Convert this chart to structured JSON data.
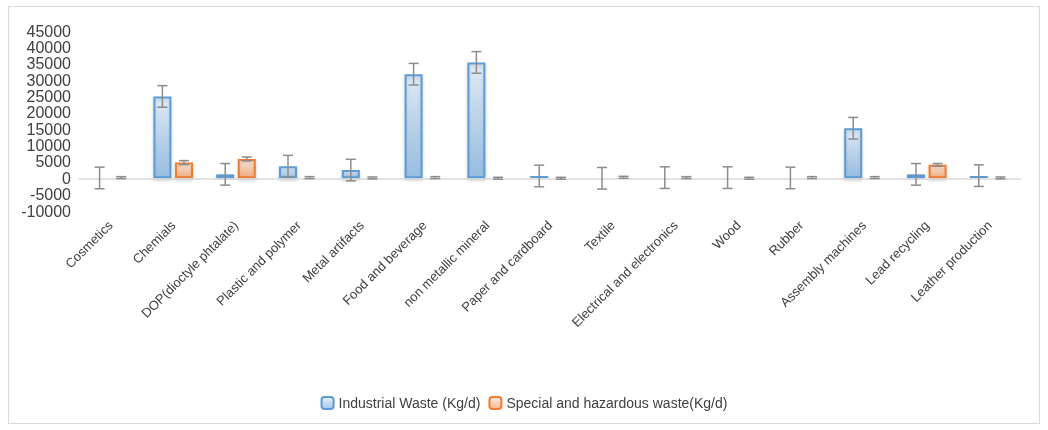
{
  "chart_data": {
    "type": "bar",
    "categories": [
      "Cosmetics",
      "Chemials",
      "DOP(dioctyle phtalate)",
      "Plastic and polymer",
      "Metal artifacts",
      "Food and beverage",
      "non metallic mineral",
      "Paper and cardboard",
      "Textile",
      "Electrical and electronics",
      "Wood",
      "Rubber",
      "Assembly machines",
      "Lead recycling",
      "Leather production"
    ],
    "series": [
      {
        "name": "Industrial Waste (Kg/d)",
        "color": "#5b9bd5",
        "values": [
          100,
          25000,
          1200,
          3700,
          2500,
          31800,
          35400,
          700,
          0,
          200,
          200,
          100,
          15300,
          1200,
          800
        ],
        "errors": [
          3300,
          3300,
          3300,
          3300,
          3300,
          3300,
          3300,
          3300,
          3300,
          3300,
          3300,
          3300,
          3300,
          3300,
          3300
        ]
      },
      {
        "name": "Special and hazardous waste(Kg/d)",
        "color": "#ed7d31",
        "values": [
          200,
          4800,
          5900,
          200,
          100,
          200,
          0,
          0,
          300,
          200,
          0,
          200,
          200,
          4100,
          100
        ],
        "errors": [
          300,
          600,
          600,
          300,
          300,
          300,
          300,
          300,
          300,
          300,
          300,
          300,
          300,
          400,
          300
        ]
      }
    ],
    "ylim": [
      -10000,
      45000
    ],
    "yticks": [
      -10000,
      -5000,
      0,
      5000,
      10000,
      15000,
      20000,
      25000,
      30000,
      35000,
      40000,
      45000
    ],
    "ref_lines": [
      {
        "axis": "y",
        "value": 0,
        "color": "#d9d9d9"
      }
    ],
    "grid": false,
    "legend": "bottom"
  }
}
